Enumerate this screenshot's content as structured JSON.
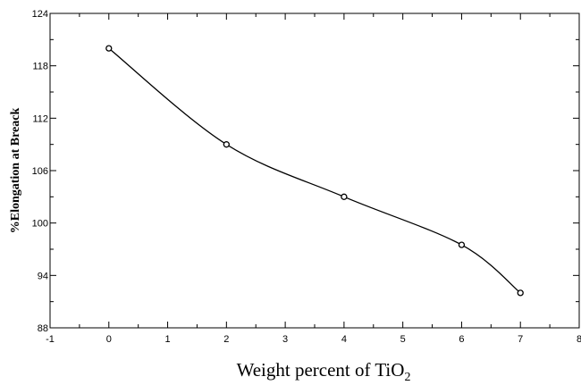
{
  "chart_data": {
    "type": "line",
    "title": "",
    "xlabel": "Weight percent of TiO",
    "xlabel_subscript": "2",
    "ylabel": "%Elongation at Breack",
    "xlim": [
      -1,
      8
    ],
    "ylim": [
      88,
      124
    ],
    "xticks": [
      "-1",
      "0",
      "1",
      "2",
      "3",
      "4",
      "5",
      "6",
      "7",
      "8"
    ],
    "yticks": [
      "88",
      "94",
      "100",
      "106",
      "112",
      "118",
      "124"
    ],
    "grid": false,
    "legend": "none",
    "series": [
      {
        "x": [
          0,
          2,
          4,
          6,
          7
        ],
        "y": [
          120.0,
          109.0,
          103.0,
          97.5,
          92.0
        ],
        "marker": "open-circle",
        "line": "smooth",
        "color": "#000000"
      }
    ]
  }
}
